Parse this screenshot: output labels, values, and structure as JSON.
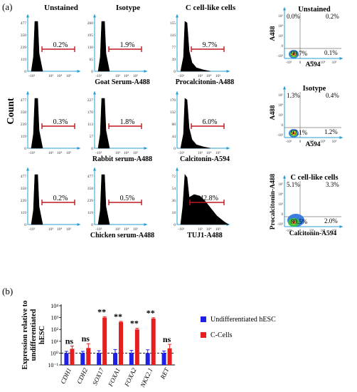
{
  "panel_a": {
    "label": "(a)",
    "count_label": "Count",
    "col_titles": [
      "Unstained",
      "Isotype",
      "C cell-like cells"
    ],
    "histograms": [
      {
        "ymax": "477",
        "yticks": [
          "477",
          "358",
          "239",
          "119",
          "0"
        ],
        "pct": "0.2%",
        "caption": "",
        "type": "neg"
      },
      {
        "ymax": "260",
        "yticks": [
          "260",
          "195",
          "130",
          "65",
          "0"
        ],
        "pct": "1.9%",
        "caption": "Goat Serum-A488",
        "type": "neg"
      },
      {
        "ymax": "155",
        "yticks": [
          "155",
          "116",
          "77",
          "39",
          "0"
        ],
        "pct": "9.7%",
        "caption": "Procalcitonin-A488",
        "type": "pos1"
      },
      {
        "ymax": "477",
        "yticks": [
          "477",
          "358",
          "239",
          "119",
          "0"
        ],
        "pct": "0.3%",
        "caption": "",
        "type": "neg"
      },
      {
        "ymax": "227",
        "yticks": [
          "227",
          "170",
          "113",
          "57",
          "0"
        ],
        "pct": "1.8%",
        "caption": "Rabbit serum-A488",
        "type": "neg"
      },
      {
        "ymax": "176",
        "yticks": [
          "176",
          "132",
          "88",
          "44",
          "0"
        ],
        "pct": "6.0%",
        "caption": "Calcitonin-A594",
        "type": "pos1"
      },
      {
        "ymax": "477",
        "yticks": [
          "477",
          "358",
          "239",
          "119",
          "0"
        ],
        "pct": "0.2%",
        "caption": "",
        "type": "neg"
      },
      {
        "ymax": "477",
        "yticks": [
          "477",
          "358",
          "239",
          "119",
          "0"
        ],
        "pct": "0.5%",
        "caption": "Chicken serum-A488",
        "type": "neg"
      },
      {
        "ymax": "72",
        "yticks": [
          "72",
          "54",
          "36",
          "18",
          "0"
        ],
        "pct": "42.8%",
        "caption": "TUJ1-A488",
        "type": "pos2"
      }
    ],
    "hist_xticks": [
      "-10¹",
      "10³",
      "10⁴",
      "10⁵"
    ],
    "scatters": [
      {
        "title": "Unstained",
        "ylabel": "A488",
        "xlabel": "A594",
        "q": [
          "0.0%",
          "0.2%",
          "99.7%",
          "0.1%"
        ]
      },
      {
        "title": "Isotype",
        "ylabel": "A488",
        "xlabel": "A594",
        "q": [
          "1.3%",
          "0.4%",
          "97.1%",
          "1.2%"
        ]
      },
      {
        "title": "C cell-like cells",
        "ylabel": "Procalcitonin-A488",
        "xlabel": "Calcitonin-A594",
        "q": [
          "5.1%",
          "3.3%",
          "89.5%",
          "2.0%"
        ]
      }
    ],
    "scatter_yticks": [
      "10⁵",
      "10⁴",
      "10³",
      "0",
      "-10³"
    ],
    "scatter_xticks": [
      "-10³",
      "0",
      "10³",
      "10⁴",
      "10⁵"
    ]
  },
  "panel_b": {
    "label": "(b)",
    "ylabel_lines": [
      "Expression relative to",
      "undifferentiated",
      "hESC"
    ],
    "yticks": [
      "10⁴",
      "10³",
      "10²",
      "10¹",
      "10⁰",
      "10⁻¹"
    ],
    "legend": [
      "Undifferentiated hESC",
      "C-Cells"
    ],
    "colors": {
      "undiff": "#1f1fe6",
      "ccells": "#e61e1e"
    },
    "chart_data": {
      "type": "bar",
      "yscale": "log",
      "ylim": [
        0.1,
        10000
      ],
      "categories": [
        "CDH1",
        "CDH2",
        "SOX17",
        "FOXA1",
        "FOXA2",
        "NKX2.1",
        "RET"
      ],
      "series": [
        {
          "name": "Undifferentiated hESC",
          "values": [
            1,
            1,
            1,
            1,
            1,
            1,
            1
          ],
          "errors": [
            0.4,
            0.4,
            0.6,
            1.0,
            0.7,
            0.9,
            0.5
          ]
        },
        {
          "name": "C-Cells",
          "values": [
            2.3,
            2.7,
            1000,
            420,
            100,
            820,
            2.5
          ],
          "errors": [
            1.6,
            3.5,
            180,
            60,
            25,
            150,
            3.0
          ]
        }
      ],
      "significance": [
        "ns",
        "ns",
        "**",
        "**",
        "**",
        "**",
        "ns"
      ]
    }
  }
}
